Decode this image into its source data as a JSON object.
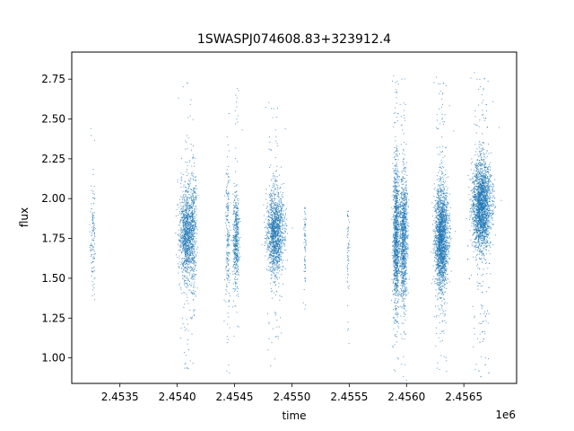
{
  "chart_data": {
    "type": "scatter",
    "title": "1SWASPJ074608.83+323912.4",
    "xlabel": "time",
    "ylabel": "flux",
    "x_offset_label": "1e6",
    "xlim": [
      2453080,
      2456960
    ],
    "ylim": [
      0.84,
      2.92
    ],
    "x_ticks": [
      2453500,
      2454000,
      2454500,
      2455000,
      2455500,
      2456000,
      2456500
    ],
    "x_tick_labels": [
      "2.4535",
      "2.4540",
      "2.4545",
      "2.4550",
      "2.4555",
      "2.4560",
      "2.4565"
    ],
    "y_ticks": [
      1.0,
      1.25,
      1.5,
      1.75,
      2.0,
      2.25,
      2.5,
      2.75
    ],
    "y_tick_labels": [
      "1.00",
      "1.25",
      "1.50",
      "1.75",
      "2.00",
      "2.25",
      "2.50",
      "2.75"
    ],
    "grid": false,
    "point_color": "#1f77b4",
    "clusters": [
      {
        "x_center": 2453265,
        "x_spread": 12,
        "y_center": 1.75,
        "y_spread": 0.17,
        "n": 120,
        "y_min": 1.25,
        "y_max": 2.49
      },
      {
        "x_center": 2454080,
        "x_spread": 30,
        "y_center": 1.78,
        "y_spread": 0.14,
        "n": 1100,
        "y_min": 0.93,
        "y_max": 2.75
      },
      {
        "x_center": 2454140,
        "x_spread": 15,
        "y_center": 1.78,
        "y_spread": 0.2,
        "n": 380,
        "y_min": 0.95,
        "y_max": 2.42
      },
      {
        "x_center": 2454440,
        "x_spread": 10,
        "y_center": 1.75,
        "y_spread": 0.22,
        "n": 200,
        "y_min": 0.86,
        "y_max": 2.79
      },
      {
        "x_center": 2454515,
        "x_spread": 14,
        "y_center": 1.75,
        "y_spread": 0.14,
        "n": 480,
        "y_min": 1.08,
        "y_max": 2.74
      },
      {
        "x_center": 2454855,
        "x_spread": 35,
        "y_center": 1.78,
        "y_spread": 0.13,
        "n": 1400,
        "y_min": 0.86,
        "y_max": 2.62
      },
      {
        "x_center": 2455115,
        "x_spread": 5,
        "y_center": 1.7,
        "y_spread": 0.15,
        "n": 70,
        "y_min": 1.3,
        "y_max": 1.94
      },
      {
        "x_center": 2455490,
        "x_spread": 5,
        "y_center": 1.7,
        "y_spread": 0.15,
        "n": 60,
        "y_min": 1.07,
        "y_max": 1.92
      },
      {
        "x_center": 2455910,
        "x_spread": 14,
        "y_center": 1.75,
        "y_spread": 0.22,
        "n": 1100,
        "y_min": 0.86,
        "y_max": 2.79
      },
      {
        "x_center": 2455975,
        "x_spread": 16,
        "y_center": 1.75,
        "y_spread": 0.2,
        "n": 1000,
        "y_min": 0.86,
        "y_max": 2.81
      },
      {
        "x_center": 2456305,
        "x_spread": 28,
        "y_center": 1.75,
        "y_spread": 0.16,
        "n": 2000,
        "y_min": 0.87,
        "y_max": 2.78
      },
      {
        "x_center": 2456655,
        "x_spread": 40,
        "y_center": 1.95,
        "y_spread": 0.14,
        "n": 2400,
        "y_min": 0.86,
        "y_max": 2.81
      }
    ]
  }
}
